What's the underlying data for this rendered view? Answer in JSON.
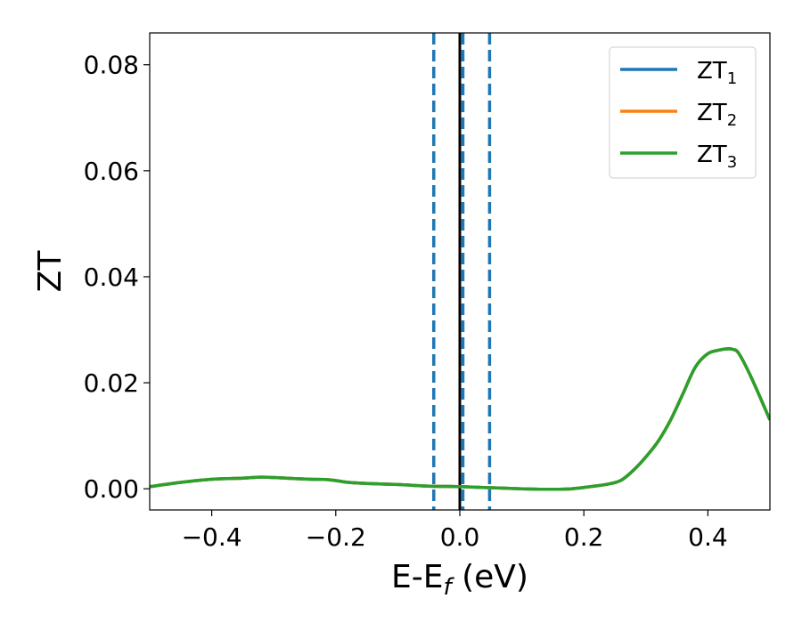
{
  "chart_data": {
    "type": "line",
    "title": "",
    "xlabel": {
      "base": "E-E",
      "sub": "f",
      "suffix": " (eV)"
    },
    "ylabel": "ZT",
    "xlim": [
      -0.5,
      0.5
    ],
    "ylim": [
      -0.004,
      0.086
    ],
    "xticks": [
      -0.4,
      -0.2,
      0.0,
      0.2,
      0.4
    ],
    "xtick_labels": [
      "−0.4",
      "−0.2",
      "0.0",
      "0.2",
      "0.4"
    ],
    "yticks": [
      0.0,
      0.02,
      0.04,
      0.06,
      0.08
    ],
    "ytick_labels": [
      "0.00",
      "0.02",
      "0.04",
      "0.06",
      "0.08"
    ],
    "grid": false,
    "legend_position": "top-right",
    "series": [
      {
        "name": "ZT",
        "sub": "1",
        "color": "#1f77b4"
      },
      {
        "name": "ZT",
        "sub": "2",
        "color": "#ff7f0e"
      },
      {
        "name": "ZT",
        "sub": "3",
        "color": "#2ca02c"
      }
    ],
    "x": [
      -0.5,
      -0.45,
      -0.4,
      -0.35,
      -0.32,
      -0.28,
      -0.24,
      -0.21,
      -0.18,
      -0.15,
      -0.1,
      -0.05,
      0.0,
      0.05,
      0.1,
      0.15,
      0.18,
      0.21,
      0.24,
      0.26,
      0.28,
      0.3,
      0.32,
      0.34,
      0.36,
      0.38,
      0.4,
      0.42,
      0.43,
      0.44,
      0.45,
      0.47,
      0.5
    ],
    "y": [
      0.0004,
      0.0012,
      0.0018,
      0.002,
      0.0022,
      0.002,
      0.0018,
      0.0017,
      0.0012,
      0.001,
      0.0008,
      0.0005,
      0.0004,
      0.0002,
      0.0,
      -0.0001,
      0.0,
      0.0004,
      0.0009,
      0.0016,
      0.0035,
      0.006,
      0.009,
      0.013,
      0.018,
      0.023,
      0.0255,
      0.0262,
      0.0264,
      0.0263,
      0.0255,
      0.021,
      0.013
    ],
    "vertical_lines": [
      {
        "x": -0.042,
        "color": "#1f77b4",
        "style": "dashed"
      },
      {
        "x": 0.005,
        "color": "#1f77b4",
        "style": "dashed"
      },
      {
        "x": 0.048,
        "color": "#1f77b4",
        "style": "dashed"
      },
      {
        "x": 0.0,
        "color": "#000000",
        "style": "solid"
      }
    ]
  }
}
